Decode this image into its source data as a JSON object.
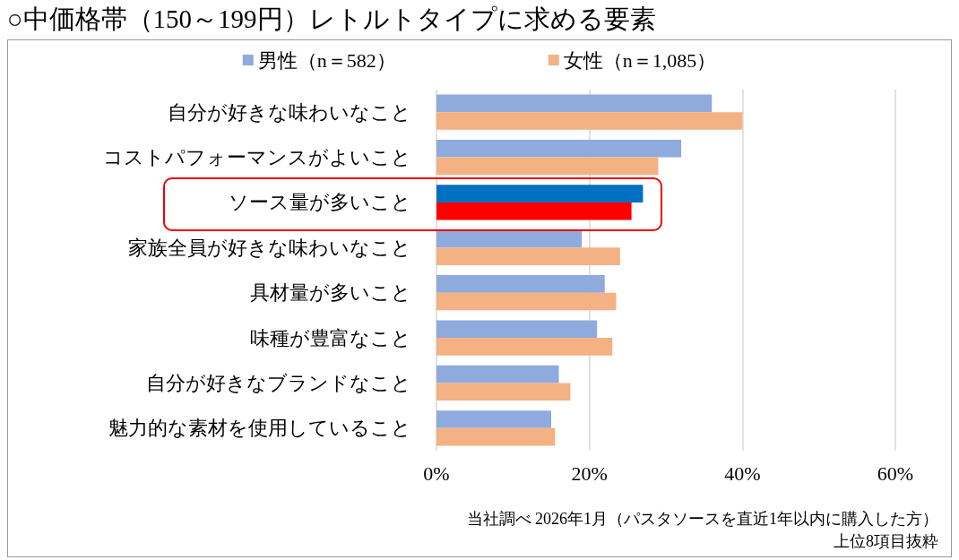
{
  "chart_data": {
    "type": "bar",
    "orientation": "horizontal",
    "title": "○中価格帯（150～199円）レトルトタイプに求める要素",
    "categories": [
      "自分が好きな味わいなこと",
      "コストパフォーマンスがよいこと",
      "ソース量が多いこと",
      "家族全員が好きな味わいなこと",
      "具材量が多いこと",
      "味種が豊富なこと",
      "自分が好きなブランドなこと",
      "魅力的な素材を使用していること"
    ],
    "series": [
      {
        "name": "男性（n＝582）",
        "color": "#8faadc",
        "colors": [
          "#8faadc",
          "#8faadc",
          "#0070c0",
          "#8faadc",
          "#8faadc",
          "#8faadc",
          "#8faadc",
          "#8faadc"
        ],
        "values": [
          36,
          32,
          27,
          19,
          22,
          21,
          16,
          15
        ]
      },
      {
        "name": "女性（n＝1,085）",
        "color": "#f4b183",
        "colors": [
          "#f4b183",
          "#f4b183",
          "#ff0000",
          "#f4b183",
          "#f4b183",
          "#f4b183",
          "#f4b183",
          "#f4b183"
        ],
        "values": [
          40,
          29,
          25.5,
          24,
          23.5,
          23,
          17.5,
          15.5
        ]
      }
    ],
    "xlim": [
      0,
      60
    ],
    "xticks": [
      {
        "value": 0,
        "label": "0%"
      },
      {
        "value": 20,
        "label": "20%"
      },
      {
        "value": 40,
        "label": "40%"
      },
      {
        "value": 60,
        "label": "60%"
      }
    ],
    "grid": "x",
    "legend": "top",
    "annotations": [
      "当社調べ 2026年1月（パスタソースを直近1年以内に購入した方）",
      "上位8項目抜粋"
    ]
  }
}
